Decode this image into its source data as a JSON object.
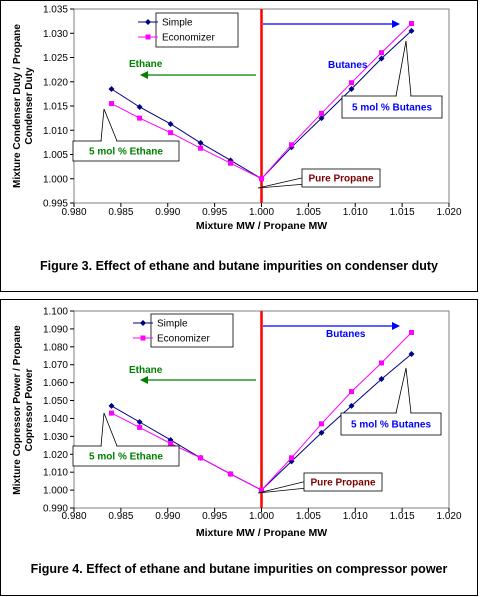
{
  "chart_data": [
    {
      "type": "line",
      "x": [
        0.984,
        0.987,
        0.9903,
        0.9935,
        0.9967,
        1.0,
        1.0032,
        1.0064,
        1.0096,
        1.0128,
        1.016
      ],
      "series": [
        {
          "name": "Simple",
          "color": "#000080",
          "marker": "diamond",
          "values": [
            1.0185,
            1.0148,
            1.0113,
            1.0074,
            1.0038,
            1.0,
            1.0065,
            1.0125,
            1.0185,
            1.0248,
            1.0305
          ]
        },
        {
          "name": "Economizer",
          "color": "#ff00ff",
          "marker": "square",
          "values": [
            1.0155,
            1.0125,
            1.0095,
            1.0063,
            1.0032,
            1.0,
            1.007,
            1.0135,
            1.0198,
            1.026,
            1.032
          ]
        }
      ],
      "xlabel": "Mixture MW / Propane MW",
      "ylabel": "Mixture Condenser Duty / Propane Condenser Duty",
      "xlim": [
        0.98,
        1.02
      ],
      "ylim": [
        0.995,
        1.035
      ],
      "xticks": [
        "0.980",
        "0.985",
        "0.990",
        "0.995",
        "1.000",
        "1.005",
        "1.010",
        "1.015",
        "1.020"
      ],
      "yticks": [
        "1.035",
        "1.030",
        "1.025",
        "1.020",
        "1.015",
        "1.010",
        "1.005",
        "1.000",
        "0.995"
      ],
      "legend": "top-left",
      "annotations": {
        "ethane_arrow": "Ethane",
        "butanes_arrow": "Butanes",
        "callout_ethane": "5 mol % Ethane",
        "callout_butanes": "5 mol % Butanes",
        "callout_propane": "Pure Propane"
      },
      "caption": "Figure 3. Effect of ethane and butane impurities on condenser duty"
    },
    {
      "type": "line",
      "x": [
        0.984,
        0.987,
        0.9903,
        0.9935,
        0.9967,
        1.0,
        1.0032,
        1.0064,
        1.0096,
        1.0128,
        1.016
      ],
      "series": [
        {
          "name": "Simple",
          "color": "#000080",
          "marker": "diamond",
          "values": [
            1.047,
            1.038,
            1.028,
            1.018,
            1.009,
            1.0,
            1.016,
            1.032,
            1.047,
            1.062,
            1.076
          ]
        },
        {
          "name": "Economizer",
          "color": "#ff00ff",
          "marker": "square",
          "values": [
            1.043,
            1.035,
            1.026,
            1.018,
            1.009,
            1.0,
            1.018,
            1.037,
            1.055,
            1.071,
            1.088
          ]
        }
      ],
      "xlabel": "Mixture MW / Propane MW",
      "ylabel": "Mixture Copressor Power / Propane Copressor Power",
      "xlim": [
        0.98,
        1.02
      ],
      "ylim": [
        0.99,
        1.1
      ],
      "xticks": [
        "0.980",
        "0.985",
        "0.990",
        "0.995",
        "1.000",
        "1.005",
        "1.010",
        "1.015",
        "1.020"
      ],
      "yticks": [
        "1.100",
        "1.090",
        "1.080",
        "1.070",
        "1.060",
        "1.050",
        "1.040",
        "1.030",
        "1.020",
        "1.010",
        "1.000",
        "0.990"
      ],
      "legend": "top-left",
      "annotations": {
        "ethane_arrow": "Ethane",
        "butanes_arrow": "Butanes",
        "callout_ethane": "5 mol % Ethane",
        "callout_butanes": "5 mol % Butanes",
        "callout_propane": "Pure Propane"
      },
      "caption": "Figure 4. Effect of ethane and butane impurities on compressor power"
    }
  ],
  "colors": {
    "simple": "#000080",
    "economizer": "#ff00ff",
    "divider": "#ff0000",
    "ethane_arrow": "#008000",
    "butanes_arrow": "#0000ff",
    "ethane_text": "#008000",
    "butanes_text": "#0000ff",
    "propane_text": "#800000"
  }
}
